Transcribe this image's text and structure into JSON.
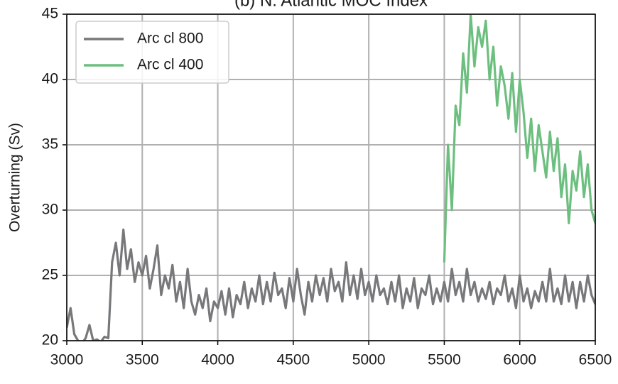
{
  "chart_data": {
    "type": "line",
    "title": "(b) N. Atlantic MOC Index",
    "ylabel": "Overturning (Sv)",
    "xlim": [
      3000,
      6500
    ],
    "xticks": [
      3000,
      3500,
      4000,
      4500,
      5000,
      5500,
      6000,
      6500
    ],
    "ylim": [
      20,
      45
    ],
    "yticks": [
      20,
      25,
      30,
      35,
      40,
      45
    ],
    "grid": true,
    "legend": "upper left",
    "x": [
      3000,
      3025,
      3050,
      3075,
      3100,
      3125,
      3150,
      3175,
      3200,
      3225,
      3250,
      3275,
      3300,
      3325,
      3350,
      3375,
      3400,
      3425,
      3450,
      3475,
      3500,
      3525,
      3550,
      3575,
      3600,
      3625,
      3650,
      3675,
      3700,
      3725,
      3750,
      3775,
      3800,
      3825,
      3850,
      3875,
      3900,
      3925,
      3950,
      3975,
      4000,
      4025,
      4050,
      4075,
      4100,
      4125,
      4150,
      4175,
      4200,
      4225,
      4250,
      4275,
      4300,
      4325,
      4350,
      4375,
      4400,
      4425,
      4450,
      4475,
      4500,
      4525,
      4550,
      4575,
      4600,
      4625,
      4650,
      4675,
      4700,
      4725,
      4750,
      4775,
      4800,
      4825,
      4850,
      4875,
      4900,
      4925,
      4950,
      4975,
      5000,
      5025,
      5050,
      5075,
      5100,
      5125,
      5150,
      5175,
      5200,
      5225,
      5250,
      5275,
      5300,
      5325,
      5350,
      5375,
      5400,
      5425,
      5450,
      5475,
      5500,
      5525,
      5550,
      5575,
      5600,
      5625,
      5650,
      5675,
      5700,
      5725,
      5750,
      5775,
      5800,
      5825,
      5850,
      5875,
      5900,
      5925,
      5950,
      5975,
      6000,
      6025,
      6050,
      6075,
      6100,
      6125,
      6150,
      6175,
      6200,
      6225,
      6250,
      6275,
      6300,
      6325,
      6350,
      6375,
      6400,
      6425,
      6450,
      6475,
      6500
    ],
    "series": [
      {
        "name": "Arc cl 800",
        "color": "#76787a",
        "values": [
          21.0,
          22.5,
          20.5,
          20.0,
          19.8,
          20.2,
          21.2,
          20.0,
          20.1,
          19.9,
          20.3,
          20.2,
          26.0,
          27.5,
          25.0,
          28.5,
          25.5,
          27.0,
          24.5,
          26.0,
          25.0,
          26.5,
          24.0,
          25.5,
          27.3,
          23.5,
          25.0,
          24.0,
          25.8,
          23.0,
          24.5,
          22.5,
          25.5,
          23.0,
          22.0,
          23.5,
          22.5,
          24.0,
          21.5,
          23.0,
          22.5,
          23.8,
          22.0,
          24.0,
          21.8,
          23.5,
          22.8,
          24.5,
          22.5,
          24.0,
          23.0,
          25.0,
          22.8,
          24.5,
          23.0,
          25.2,
          23.5,
          24.0,
          22.5,
          24.8,
          23.0,
          25.5,
          23.5,
          22.0,
          24.5,
          23.0,
          25.0,
          23.5,
          24.8,
          23.0,
          25.5,
          23.8,
          24.5,
          23.0,
          26.0,
          23.5,
          25.0,
          23.2,
          25.5,
          23.5,
          24.5,
          23.0,
          25.0,
          23.5,
          24.0,
          22.8,
          24.5,
          23.0,
          25.0,
          22.5,
          24.0,
          23.0,
          24.8,
          22.5,
          24.0,
          23.5,
          25.0,
          22.8,
          24.0,
          23.0,
          24.5,
          23.0,
          25.5,
          23.5,
          24.5,
          23.0,
          25.5,
          23.5,
          24.5,
          23.0,
          24.0,
          23.2,
          24.5,
          22.8,
          24.0,
          23.5,
          25.0,
          23.0,
          24.0,
          22.5,
          25.0,
          23.0,
          24.0,
          22.5,
          23.8,
          23.0,
          24.5,
          23.0,
          25.5,
          23.0,
          24.0,
          22.8,
          25.0,
          23.0,
          24.5,
          22.5,
          24.5,
          23.0,
          25.0,
          23.5,
          22.8
        ]
      },
      {
        "name": "Arc cl 400",
        "color": "#6dbf7f",
        "values": [
          null,
          null,
          null,
          null,
          null,
          null,
          null,
          null,
          null,
          null,
          null,
          null,
          null,
          null,
          null,
          null,
          null,
          null,
          null,
          null,
          null,
          null,
          null,
          null,
          null,
          null,
          null,
          null,
          null,
          null,
          null,
          null,
          null,
          null,
          null,
          null,
          null,
          null,
          null,
          null,
          null,
          null,
          null,
          null,
          null,
          null,
          null,
          null,
          null,
          null,
          null,
          null,
          null,
          null,
          null,
          null,
          null,
          null,
          null,
          null,
          null,
          null,
          null,
          null,
          null,
          null,
          null,
          null,
          null,
          null,
          null,
          null,
          null,
          null,
          null,
          null,
          null,
          null,
          null,
          null,
          null,
          null,
          null,
          null,
          null,
          null,
          null,
          null,
          null,
          null,
          null,
          null,
          null,
          null,
          null,
          null,
          null,
          null,
          null,
          null,
          26.0,
          35.0,
          30.0,
          38.0,
          36.5,
          42.0,
          39.0,
          45.0,
          41.0,
          44.0,
          42.5,
          44.5,
          40.0,
          42.5,
          38.0,
          41.0,
          39.5,
          37.0,
          40.5,
          36.0,
          40.0,
          37.5,
          34.0,
          37.0,
          33.0,
          36.5,
          34.5,
          32.5,
          36.0,
          33.0,
          35.5,
          31.0,
          33.5,
          29.0,
          33.0,
          31.5,
          34.5,
          31.0,
          33.5,
          30.0,
          29.0
        ]
      }
    ]
  }
}
